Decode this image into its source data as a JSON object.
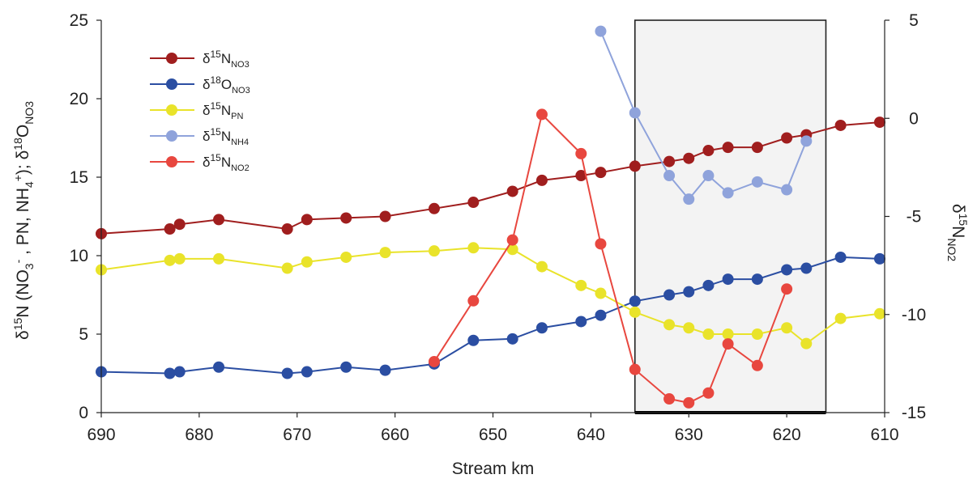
{
  "chart_data": {
    "type": "line",
    "xlabel": "Stream km",
    "x_axis": {
      "range": [
        690,
        610
      ],
      "ticks": [
        690,
        680,
        670,
        660,
        650,
        640,
        630,
        620,
        610
      ],
      "reversed": true
    },
    "y_left": {
      "range": [
        0,
        25
      ],
      "ticks": [
        0,
        5,
        10,
        15,
        20,
        25
      ],
      "label_parts": [
        "δ",
        "15",
        "N (NO",
        "3",
        "-",
        " , PN, NH",
        "4",
        "+",
        "); δ",
        "18",
        "O",
        "NO3"
      ]
    },
    "y_right": {
      "range": [
        -15,
        5
      ],
      "ticks": [
        -15,
        -10,
        -5,
        0,
        5
      ],
      "label_parts": [
        "δ",
        "15",
        "N",
        "NO2"
      ]
    },
    "shaded_region": {
      "x_start": 635.5,
      "x_end": 616
    },
    "grid": false,
    "legend_position": "top-left",
    "series": [
      {
        "key": "d15n_no3",
        "legend": {
          "delta": "δ",
          "sup": "15",
          "main": "N",
          "sub": "NO3"
        },
        "color": "#a01e1e",
        "axis": "left",
        "x": [
          690,
          683,
          682,
          678,
          671,
          669,
          665,
          661,
          656,
          652,
          648,
          645,
          641,
          639,
          635.5,
          632,
          630,
          628,
          626,
          623,
          620,
          618,
          614.5,
          610.5
        ],
        "y": [
          11.4,
          11.7,
          12.0,
          12.3,
          11.7,
          12.3,
          12.4,
          12.5,
          13.0,
          13.4,
          14.1,
          14.8,
          15.1,
          15.3,
          15.7,
          16.0,
          16.2,
          16.7,
          16.9,
          16.9,
          17.5,
          17.7,
          18.3,
          18.5
        ]
      },
      {
        "key": "d18o_no3",
        "legend": {
          "delta": "δ",
          "sup": "18",
          "main": "O",
          "sub": "NO3"
        },
        "color": "#2b4ea2",
        "axis": "left",
        "x": [
          690,
          683,
          682,
          678,
          671,
          669,
          665,
          661,
          656,
          652,
          648,
          645,
          641,
          639,
          635.5,
          632,
          630,
          628,
          626,
          623,
          620,
          618,
          614.5,
          610.5
        ],
        "y": [
          2.6,
          2.5,
          2.6,
          2.9,
          2.5,
          2.6,
          2.9,
          2.7,
          3.1,
          4.6,
          4.7,
          5.4,
          5.8,
          6.2,
          7.1,
          7.5,
          7.7,
          8.1,
          8.5,
          8.5,
          9.1,
          9.2,
          9.9,
          9.8
        ]
      },
      {
        "key": "d15n_pn",
        "legend": {
          "delta": "δ",
          "sup": "15",
          "main": "N",
          "sub": "PN"
        },
        "color": "#e9e32a",
        "axis": "left",
        "x": [
          690,
          683,
          682,
          678,
          671,
          669,
          665,
          661,
          656,
          652,
          648,
          645,
          641,
          639,
          635.5,
          632,
          630,
          628,
          626,
          623,
          620,
          618,
          614.5,
          610.5
        ],
        "y": [
          9.1,
          9.7,
          9.8,
          9.8,
          9.2,
          9.6,
          9.9,
          10.2,
          10.3,
          10.5,
          10.4,
          9.3,
          8.1,
          7.6,
          6.4,
          5.6,
          5.4,
          5.0,
          5.0,
          5.0,
          5.4,
          4.4,
          6.0,
          6.3
        ]
      },
      {
        "key": "d15n_nh4",
        "legend": {
          "delta": "δ",
          "sup": "15",
          "main": "N",
          "sub": "NH4"
        },
        "color": "#8fa3db",
        "axis": "left",
        "x": [
          639,
          635.5,
          632,
          630,
          628,
          626,
          623,
          620,
          618
        ],
        "y": [
          24.3,
          19.1,
          15.1,
          13.6,
          15.1,
          14.0,
          14.7,
          14.2,
          17.3
        ]
      },
      {
        "key": "d15n_no2",
        "legend": {
          "delta": "δ",
          "sup": "15",
          "main": "N",
          "sub": "NO2"
        },
        "color": "#e8473f",
        "axis": "right",
        "x": [
          656,
          652,
          648,
          645,
          641,
          639,
          635.5,
          632,
          630,
          628,
          626,
          623,
          620
        ],
        "y": [
          -12.4,
          -9.3,
          -6.2,
          0.2,
          -1.8,
          -6.4,
          -12.8,
          -14.3,
          -14.5,
          -14.0,
          -11.5,
          -12.6,
          -8.7
        ]
      }
    ]
  }
}
